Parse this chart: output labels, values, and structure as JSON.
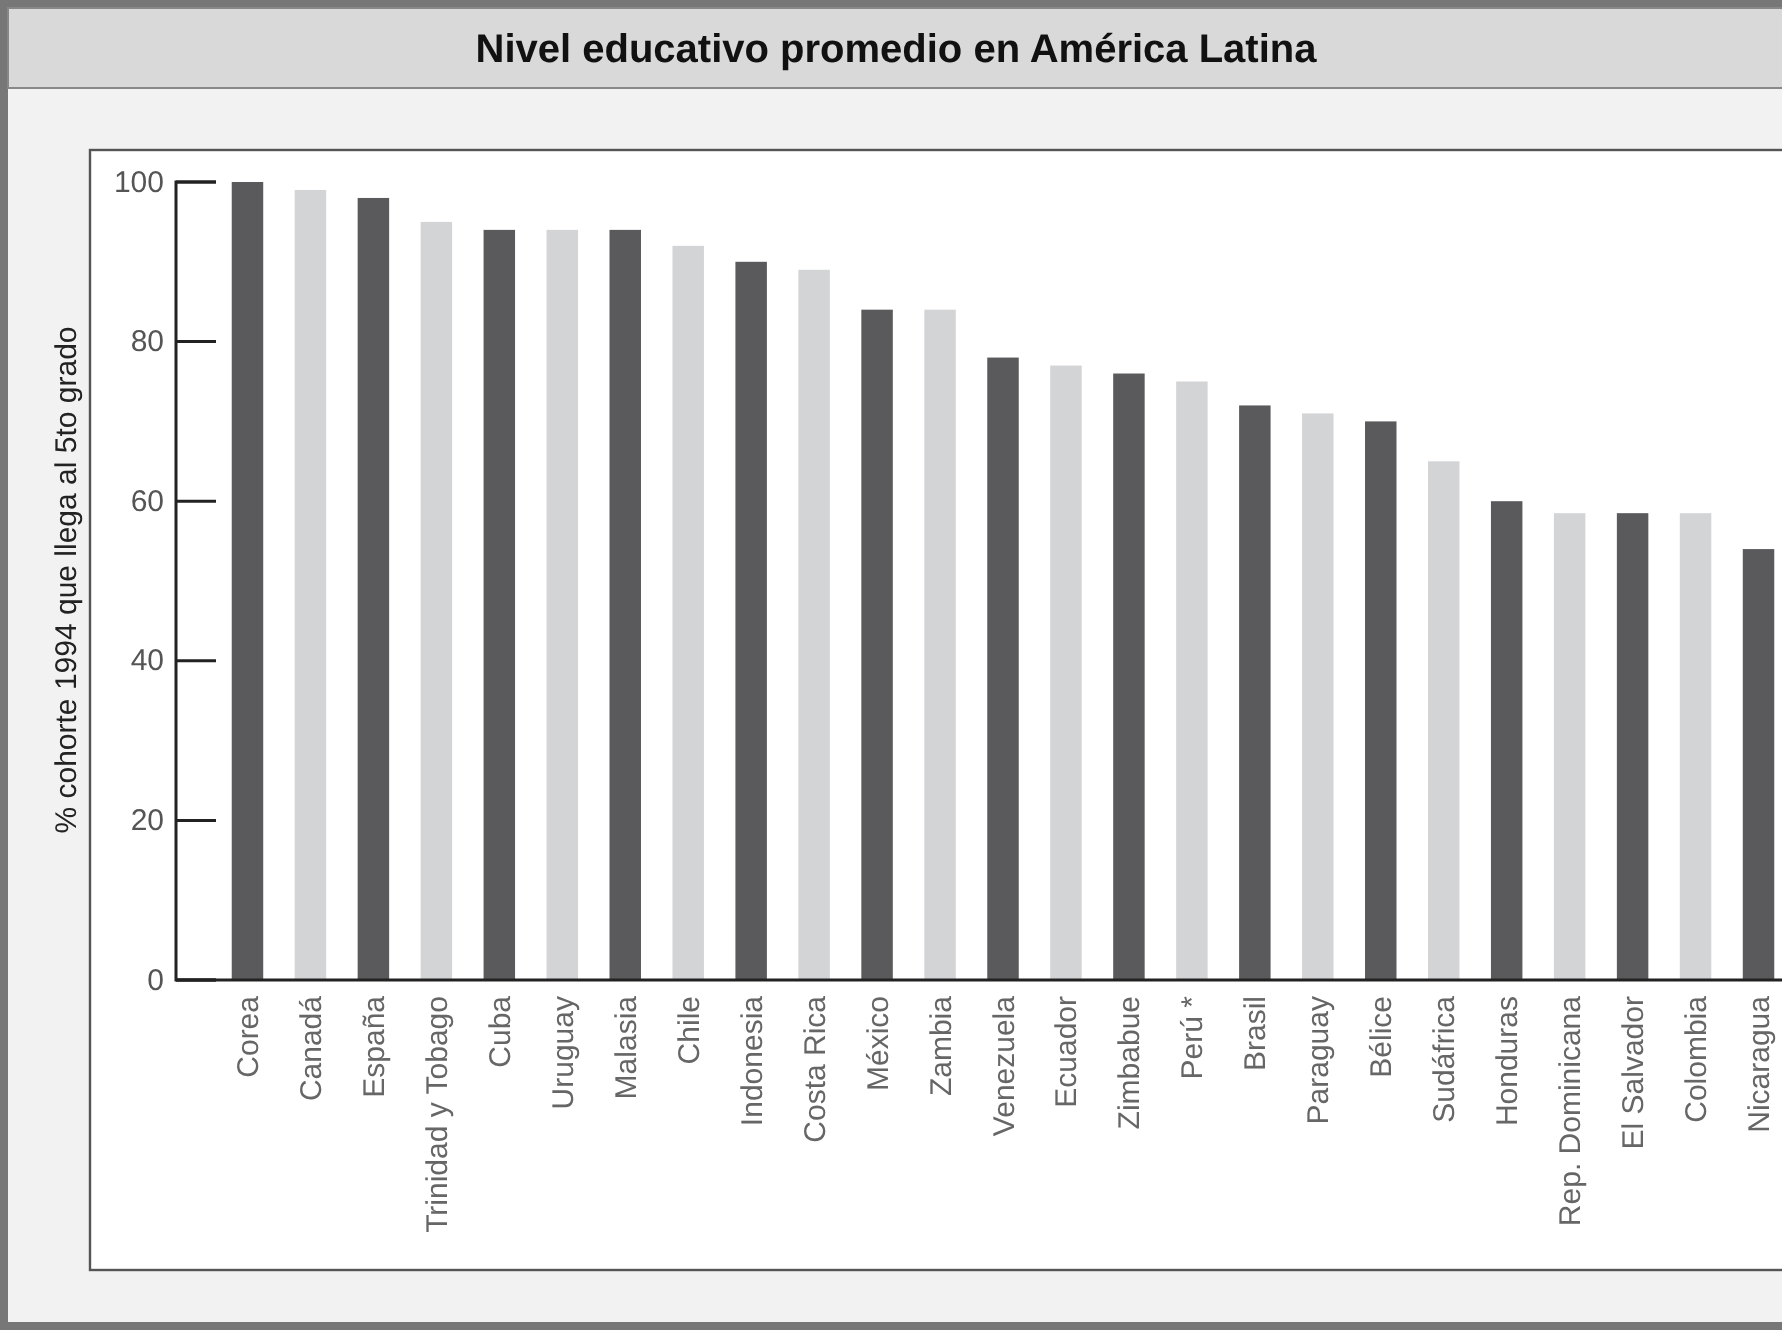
{
  "chart_data": {
    "type": "bar",
    "title": "Nivel educativo promedio en América Latina",
    "ylabel": "% cohorte 1994 que llega al 5to grado",
    "categories": [
      "Corea",
      "Canadá",
      "España",
      "Trinidad y Tobago",
      "Cuba",
      "Uruguay",
      "Malasia",
      "Chile",
      "Indonesia",
      "Costa Rica",
      "México",
      "Zambia",
      "Venezuela",
      "Ecuador",
      "Zimbabue",
      "Perú *",
      "Brasil",
      "Paraguay",
      "Bélice",
      "Sudáfrica",
      "Honduras",
      "Rep. Dominicana",
      "El Salvador",
      "Colombia",
      "Nicaragua"
    ],
    "values": [
      100,
      99,
      98,
      95,
      94,
      94,
      94,
      92,
      90,
      89,
      84,
      84,
      78,
      77,
      76,
      75,
      72,
      71,
      70,
      65,
      60,
      58.5,
      58.5,
      58.5,
      54
    ],
    "colors": [
      "#5a5a5c",
      "#d3d4d6",
      "#5a5a5c",
      "#d3d4d6",
      "#5a5a5c",
      "#d3d4d6",
      "#5a5a5c",
      "#d3d4d6",
      "#5a5a5c",
      "#d3d4d6",
      "#5a5a5c",
      "#d3d4d6",
      "#5a5a5c",
      "#d3d4d6",
      "#5a5a5c",
      "#d3d4d6",
      "#5a5a5c",
      "#d3d4d6",
      "#5a5a5c",
      "#d3d4d6",
      "#5a5a5c",
      "#d3d4d6",
      "#5a5a5c",
      "#d3d4d6",
      "#5a5a5c"
    ],
    "ylim": [
      0,
      100
    ],
    "yticks": [
      0,
      20,
      40,
      60,
      80,
      100
    ],
    "grid": false
  }
}
